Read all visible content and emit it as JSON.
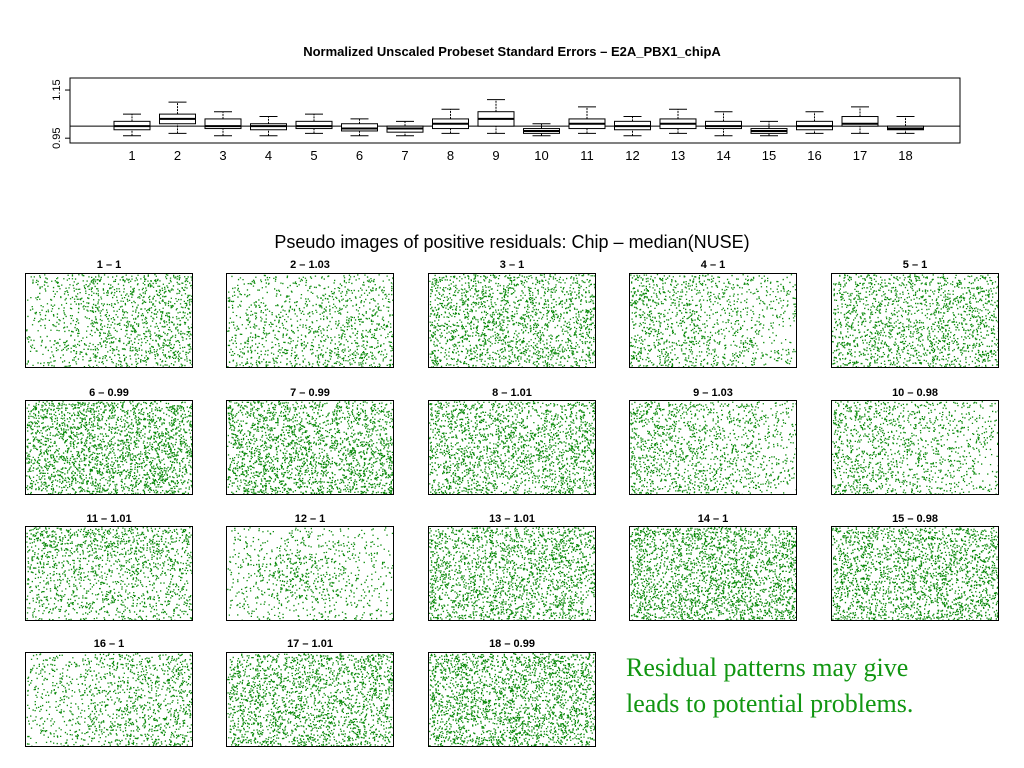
{
  "chart_data": [
    {
      "type": "box",
      "title": "Normalized Unscaled Probeset Standard Errors –  E2A_PBX1_chipA",
      "xlabel": "",
      "ylabel": "",
      "ylim": [
        0.93,
        1.2
      ],
      "y_tick_labels": [
        "0.95",
        "1.15"
      ],
      "y_tick_values": [
        0.95,
        1.15
      ],
      "reference_line": 1.0,
      "categories": [
        "1",
        "2",
        "3",
        "4",
        "5",
        "6",
        "7",
        "8",
        "9",
        "10",
        "11",
        "12",
        "13",
        "14",
        "15",
        "16",
        "17",
        "18"
      ],
      "boxes": [
        {
          "label": "1",
          "whisker_low": 0.96,
          "q1": 0.985,
          "median": 1.0,
          "q3": 1.02,
          "whisker_high": 1.05
        },
        {
          "label": "2",
          "whisker_low": 0.97,
          "q1": 1.01,
          "median": 1.03,
          "q3": 1.05,
          "whisker_high": 1.1
        },
        {
          "label": "3",
          "whisker_low": 0.96,
          "q1": 0.99,
          "median": 1.0,
          "q3": 1.03,
          "whisker_high": 1.06
        },
        {
          "label": "4",
          "whisker_low": 0.96,
          "q1": 0.985,
          "median": 1.0,
          "q3": 1.01,
          "whisker_high": 1.04
        },
        {
          "label": "5",
          "whisker_low": 0.97,
          "q1": 0.99,
          "median": 1.0,
          "q3": 1.02,
          "whisker_high": 1.05
        },
        {
          "label": "6",
          "whisker_low": 0.96,
          "q1": 0.98,
          "median": 0.99,
          "q3": 1.01,
          "whisker_high": 1.03
        },
        {
          "label": "7",
          "whisker_low": 0.96,
          "q1": 0.975,
          "median": 0.99,
          "q3": 1.0,
          "whisker_high": 1.02
        },
        {
          "label": "8",
          "whisker_low": 0.97,
          "q1": 0.99,
          "median": 1.01,
          "q3": 1.03,
          "whisker_high": 1.07
        },
        {
          "label": "9",
          "whisker_low": 0.97,
          "q1": 1.0,
          "median": 1.03,
          "q3": 1.06,
          "whisker_high": 1.11
        },
        {
          "label": "10",
          "whisker_low": 0.96,
          "q1": 0.97,
          "median": 0.98,
          "q3": 0.99,
          "whisker_high": 1.01
        },
        {
          "label": "11",
          "whisker_low": 0.97,
          "q1": 0.99,
          "median": 1.01,
          "q3": 1.03,
          "whisker_high": 1.08
        },
        {
          "label": "12",
          "whisker_low": 0.96,
          "q1": 0.985,
          "median": 1.0,
          "q3": 1.02,
          "whisker_high": 1.04
        },
        {
          "label": "13",
          "whisker_low": 0.97,
          "q1": 0.99,
          "median": 1.01,
          "q3": 1.03,
          "whisker_high": 1.07
        },
        {
          "label": "14",
          "whisker_low": 0.96,
          "q1": 0.99,
          "median": 1.0,
          "q3": 1.02,
          "whisker_high": 1.06
        },
        {
          "label": "15",
          "whisker_low": 0.96,
          "q1": 0.97,
          "median": 0.98,
          "q3": 0.99,
          "whisker_high": 1.02
        },
        {
          "label": "16",
          "whisker_low": 0.97,
          "q1": 0.985,
          "median": 1.0,
          "q3": 1.02,
          "whisker_high": 1.06
        },
        {
          "label": "17",
          "whisker_low": 0.97,
          "q1": 1.0,
          "median": 1.01,
          "q3": 1.04,
          "whisker_high": 1.08
        },
        {
          "label": "18",
          "whisker_low": 0.97,
          "q1": 0.985,
          "median": 0.99,
          "q3": 1.0,
          "whisker_high": 1.04
        }
      ]
    },
    {
      "type": "heatmap",
      "title": "Pseudo images of positive residuals: Chip – median(NUSE)",
      "point_color": "#0a8a0a",
      "panels": [
        {
          "label": "1 – 1",
          "density": 0.6,
          "dense_side": "right"
        },
        {
          "label": "2 – 1.03",
          "density": 0.5,
          "dense_side": "bottom-right"
        },
        {
          "label": "3 – 1",
          "density": 0.55,
          "dense_side": "none"
        },
        {
          "label": "4 – 1",
          "density": 0.55,
          "dense_side": "left"
        },
        {
          "label": "5 – 1",
          "density": 0.5,
          "dense_side": "none"
        },
        {
          "label": "6 – 0.99",
          "density": 0.7,
          "dense_side": "none"
        },
        {
          "label": "7 – 0.99",
          "density": 0.65,
          "dense_side": "none"
        },
        {
          "label": "8 – 1.01",
          "density": 0.6,
          "dense_side": "none"
        },
        {
          "label": "9 – 1.03",
          "density": 0.6,
          "dense_side": "left"
        },
        {
          "label": "10 – 0.98",
          "density": 0.55,
          "dense_side": "left"
        },
        {
          "label": "11 – 1.01",
          "density": 0.6,
          "dense_side": "top"
        },
        {
          "label": "12 – 1",
          "density": 0.55,
          "dense_side": "center"
        },
        {
          "label": "13 – 1.01",
          "density": 0.6,
          "dense_side": "none"
        },
        {
          "label": "14 – 1",
          "density": 0.7,
          "dense_side": "none"
        },
        {
          "label": "15 – 0.98",
          "density": 0.65,
          "dense_side": "none"
        },
        {
          "label": "16 – 1",
          "density": 0.55,
          "dense_side": "right"
        },
        {
          "label": "17 – 1.01",
          "density": 0.6,
          "dense_side": "none"
        },
        {
          "label": "18 – 0.99",
          "density": 0.7,
          "dense_side": "none"
        }
      ]
    }
  ],
  "note": {
    "line1": "Residual patterns  may give",
    "line2": "leads to  potential problems."
  }
}
